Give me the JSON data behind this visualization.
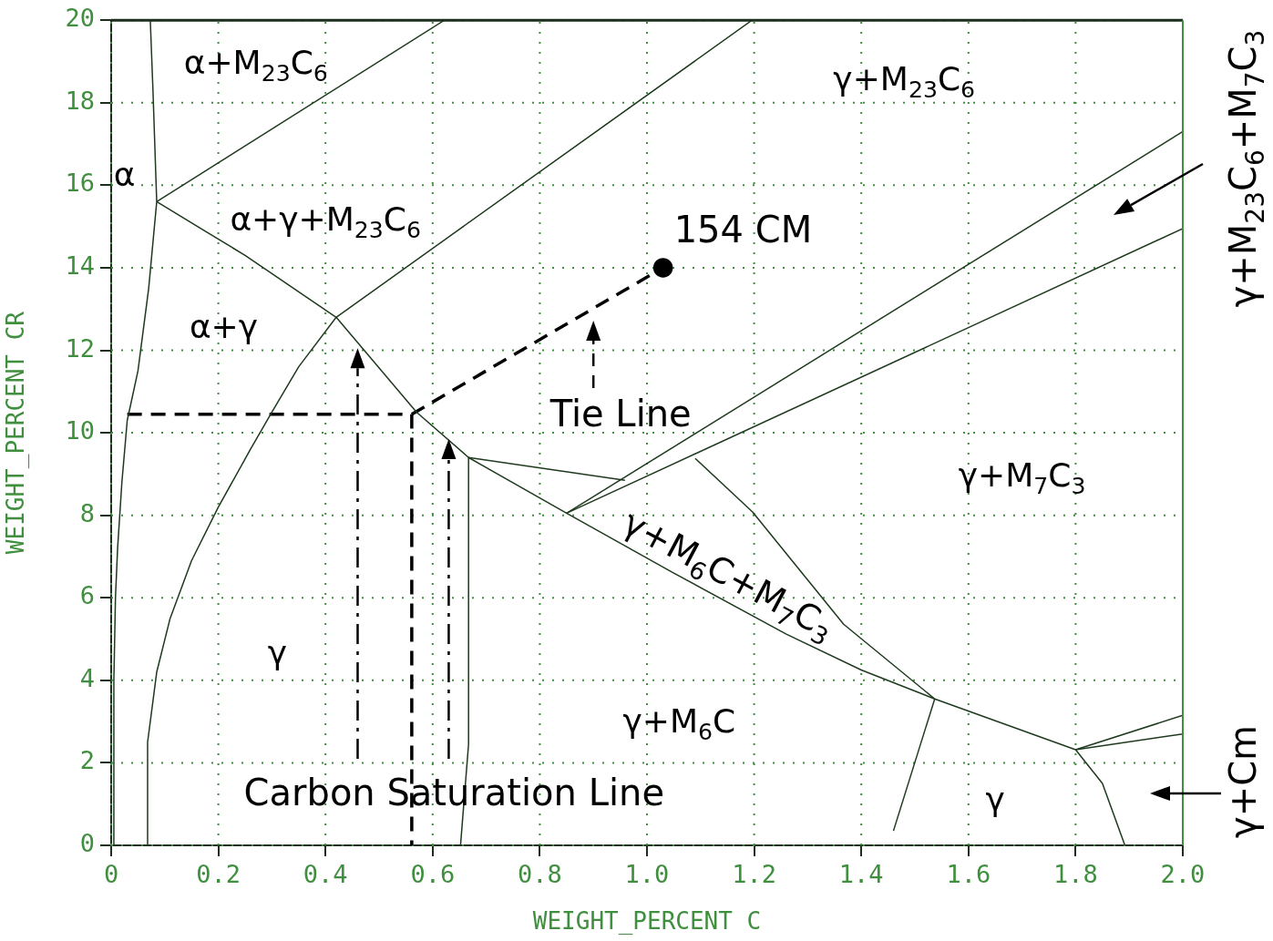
{
  "chart_data": {
    "type": "line",
    "xlabel": "WEIGHT_PERCENT C",
    "ylabel": "WEIGHT_PERCENT CR",
    "xlim": [
      0,
      2
    ],
    "ylim": [
      0,
      20
    ],
    "xticks": [
      0,
      0.2,
      0.4,
      0.6,
      0.8,
      {
        "value": 1,
        "label": "1.0"
      },
      1.2,
      1.4,
      1.6,
      1.8,
      {
        "value": 2,
        "label": "2.0"
      }
    ],
    "yticks": [
      0,
      2,
      4,
      6,
      8,
      10,
      12,
      14,
      16,
      18,
      20
    ],
    "grid": true,
    "legend": false,
    "marker": "none",
    "line_style": "solid",
    "series": [
      {
        "type": "line",
        "color": "#1e3a1e",
        "x": [
          0.073,
          0.078,
          0.085,
          0.07,
          0.05,
          0.03,
          0.02,
          0.012,
          0.008,
          0.005,
          0.005
        ],
        "values": [
          20,
          18.3,
          15.6,
          13.5,
          11.5,
          10.3,
          8.8,
          7.2,
          6,
          4,
          0
        ]
      },
      {
        "type": "line",
        "color": "#1e3a1e",
        "x": [
          0.068,
          0.068,
          0.085,
          0.11,
          0.15,
          0.2,
          0.26,
          0.3,
          0.35,
          0.42,
          1.196
        ],
        "values": [
          0,
          2.5,
          4.2,
          5.5,
          6.9,
          8.2,
          9.6,
          10.5,
          11.6,
          12.8,
          20
        ]
      },
      {
        "type": "line",
        "color": "#1e3a1e",
        "x": [
          0.085,
          0.622
        ],
        "values": [
          15.6,
          20
        ]
      },
      {
        "type": "line",
        "color": "#1e3a1e",
        "x": [
          0.085,
          0.25,
          0.42,
          0.57,
          0.667,
          0.85,
          1.05,
          1.26,
          1.4,
          1.537,
          1.8,
          2.0
        ],
        "values": [
          15.6,
          14.3,
          12.8,
          10.5,
          9.4,
          8.05,
          6.6,
          5.12,
          4.25,
          3.55,
          2.32,
          3.15
        ]
      },
      {
        "type": "line",
        "color": "#1e3a1e",
        "x": [
          1.8,
          2.0
        ],
        "values": [
          2.32,
          2.7
        ]
      },
      {
        "type": "line",
        "color": "#1e3a1e",
        "x": [
          0.667,
          0.667,
          0.652
        ],
        "values": [
          9.4,
          2.45,
          0
        ]
      },
      {
        "type": "line",
        "color": "#1e3a1e",
        "x": [
          0.667,
          0.959
        ],
        "values": [
          9.4,
          8.85
        ]
      },
      {
        "type": "line",
        "color": "#1e3a1e",
        "x": [
          1.09,
          1.197,
          1.367,
          1.537
        ],
        "values": [
          9.38,
          8.08,
          5.36,
          3.55
        ]
      },
      {
        "type": "line",
        "color": "#1e3a1e",
        "x": [
          0.85,
          2.0
        ],
        "values": [
          8.05,
          17.3
        ]
      },
      {
        "type": "line",
        "color": "#1e3a1e",
        "x": [
          0.85,
          2.0
        ],
        "values": [
          8.05,
          14.95
        ]
      },
      {
        "type": "line",
        "color": "#1e3a1e",
        "x": [
          1.537,
          1.46
        ],
        "values": [
          3.55,
          0.35
        ]
      },
      {
        "type": "line",
        "color": "#1e3a1e",
        "x": [
          1.8,
          1.85,
          1.892
        ],
        "values": [
          2.32,
          1.5,
          0
        ]
      },
      {
        "type": "line",
        "color": "#000000",
        "line_style": "dashed",
        "x": [
          0.03,
          0.561,
          0.561
        ],
        "values": [
          10.45,
          10.45,
          0
        ]
      },
      {
        "type": "line",
        "color": "#000000",
        "line_style": "dashed",
        "x": [
          0.561,
          1.03
        ],
        "values": [
          10.45,
          14
        ]
      },
      {
        "type": "scatter",
        "color": "#000000",
        "marker": "circle",
        "x": [
          1.03
        ],
        "values": [
          14
        ]
      }
    ],
    "annotations": [
      "α+M$_{23}$C$_{6}$",
      "α",
      "α+γ+M$_{23}$C$_{6}$",
      "α+γ",
      "γ",
      "γ+M$_{23}$C$_{6}$",
      {
        "text": "154 CM",
        "x": 1.03,
        "y": 14
      },
      {
        "text": "Tie Line",
        "x": 0.9,
        "y": 12.85
      },
      "γ+M$_{7}$C$_{3}$",
      "γ+M$_{6}$C+M$_{7}$C$_{3}$",
      "γ+M$_{6}$C",
      "Carbon Saturation Line",
      "γ",
      "γ+M$_{23}$C$_{6}$+M$_{7}$C$_{3}$",
      "γ+Cm"
    ]
  }
}
